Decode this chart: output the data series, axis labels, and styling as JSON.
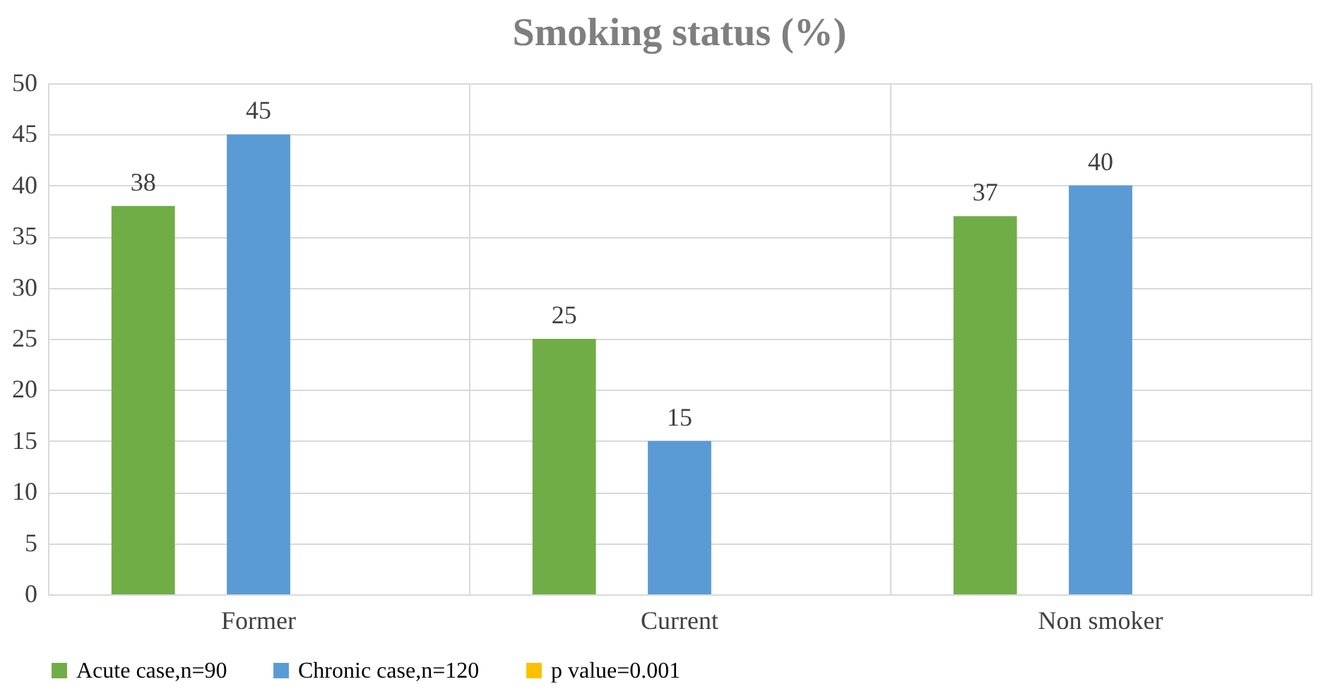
{
  "chart_data": {
    "type": "bar",
    "title": "Smoking status (%)",
    "categories": [
      "Former",
      "Current",
      "Non smoker"
    ],
    "series": [
      {
        "name": "Acute case,n=90",
        "color": "#70ad47",
        "values": [
          38,
          25,
          37
        ]
      },
      {
        "name": "Chronic case,n=120",
        "color": "#5b9bd5",
        "values": [
          45,
          15,
          40
        ]
      },
      {
        "name": "p value=0.001",
        "color": "#ffc000",
        "values": [
          null,
          null,
          null
        ]
      }
    ],
    "ylim": [
      0,
      50
    ],
    "yticks": [
      0,
      5,
      10,
      15,
      20,
      25,
      30,
      35,
      40,
      45,
      50
    ],
    "grid": true,
    "legend": "bottom",
    "data_labels": true
  }
}
